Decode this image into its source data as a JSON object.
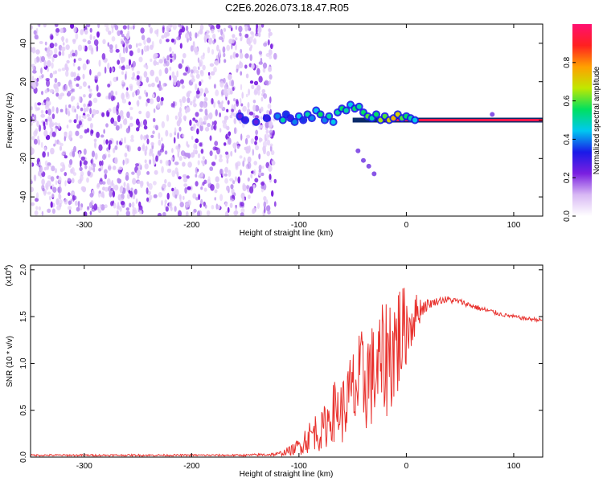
{
  "figure_title": "C2E6.2026.073.18.47.R05",
  "colors": {
    "axis": "#000000",
    "snr_line": "#e8312d",
    "spectrogram_noise": "#7a1fe0",
    "background": "#ffffff"
  },
  "chart_data": [
    {
      "type": "heatmap",
      "title": "C2E6.2026.073.18.47.R05",
      "xlabel": "Height of straight line (km)",
      "ylabel": "Frequency (Hz)",
      "xlim": [
        -350,
        127
      ],
      "ylim": [
        -50,
        50
      ],
      "x_ticks": [
        -300,
        -200,
        -100,
        0,
        100
      ],
      "x_tick_labels": [
        "-300",
        "-200",
        "-100",
        "0",
        "100"
      ],
      "y_ticks": [
        -40,
        -20,
        0,
        20,
        40
      ],
      "y_tick_labels": [
        "-40",
        "-20",
        "0",
        "20",
        "40"
      ],
      "colorbar": {
        "label": "Normalized spectral amplitude",
        "range": [
          0.0,
          1.0
        ],
        "ticks": [
          0.0,
          0.2,
          0.4,
          0.6,
          0.8
        ],
        "tick_labels": [
          "0.0",
          "0.2",
          "0.4",
          "0.6",
          "0.8"
        ],
        "colormap": [
          "#ffffff",
          "#d8b8f4",
          "#7a1fe0",
          "#1a1ae8",
          "#00c8f0",
          "#00e060",
          "#c0e800",
          "#ffa000",
          "#ff2020",
          "#ff1070"
        ]
      },
      "features": {
        "noise_region_x": [
          -350,
          -122
        ],
        "carrier_line_x": [
          -50,
          127
        ],
        "carrier_freq": 0,
        "carrier_max_amplitude": 0.95,
        "spur_points": [
          [
            -45,
            -16
          ],
          [
            -40,
            -21
          ],
          [
            -35,
            -24
          ],
          [
            -30,
            -28
          ],
          [
            80,
            3
          ]
        ],
        "scatter_points": [
          [
            -120,
            2,
            0.4
          ],
          [
            -115,
            0,
            0.5
          ],
          [
            -112,
            3,
            0.35
          ],
          [
            -108,
            1,
            0.3
          ],
          [
            -104,
            -1,
            0.4
          ],
          [
            -100,
            2,
            0.45
          ],
          [
            -96,
            0,
            0.35
          ],
          [
            -92,
            3,
            0.5
          ],
          [
            -88,
            1,
            0.4
          ],
          [
            -84,
            5,
            0.45
          ],
          [
            -80,
            3,
            0.55
          ],
          [
            -76,
            0,
            0.4
          ],
          [
            -72,
            2,
            0.5
          ],
          [
            -68,
            -1,
            0.45
          ],
          [
            -64,
            4,
            0.5
          ],
          [
            -60,
            6,
            0.55
          ],
          [
            -56,
            5,
            0.5
          ],
          [
            -52,
            8,
            0.45
          ],
          [
            -48,
            6,
            0.55
          ],
          [
            -44,
            7,
            0.5
          ],
          [
            -40,
            4,
            0.55
          ],
          [
            -36,
            2,
            0.6
          ],
          [
            -32,
            1,
            0.5
          ],
          [
            -28,
            3,
            0.55
          ],
          [
            -24,
            0,
            0.65
          ],
          [
            -20,
            2,
            0.6
          ],
          [
            -16,
            0,
            0.7
          ],
          [
            -12,
            1,
            0.75
          ],
          [
            -8,
            3,
            0.7
          ],
          [
            -4,
            1,
            0.6
          ],
          [
            0,
            2,
            0.55
          ],
          [
            4,
            1,
            0.5
          ],
          [
            8,
            0,
            0.45
          ],
          [
            -130,
            1,
            0.3
          ],
          [
            -140,
            -1,
            0.25
          ],
          [
            -150,
            0,
            0.3
          ],
          [
            -155,
            2,
            0.25
          ]
        ]
      }
    },
    {
      "type": "line",
      "title": "",
      "xlabel": "Height of straight line (km)",
      "ylabel": "SNR (10 * v/v)",
      "y_scale_label": "(x10",
      "y_scale_exponent": "4",
      "xlim": [
        -350,
        127
      ],
      "ylim": [
        0,
        2.05
      ],
      "x_ticks": [
        -300,
        -200,
        -100,
        0,
        100
      ],
      "x_tick_labels": [
        "-300",
        "-200",
        "-100",
        "0",
        "100"
      ],
      "y_ticks": [
        0.0,
        0.5,
        1.0,
        1.5,
        2.0
      ],
      "y_tick_labels": [
        "0.0",
        "0.5",
        "1.0",
        "1.5",
        "2.0"
      ],
      "series": [
        {
          "name": "SNR",
          "color": "#e8312d",
          "x": [
            -350,
            -300,
            -250,
            -200,
            -150,
            -120,
            -105,
            -100,
            -95,
            -90,
            -85,
            -80,
            -75,
            -70,
            -65,
            -60,
            -55,
            -50,
            -45,
            -40,
            -35,
            -30,
            -25,
            -20,
            -15,
            -10,
            -5,
            0,
            5,
            10,
            15,
            20,
            25,
            30,
            35,
            40,
            50,
            60,
            70,
            80,
            90,
            100,
            110,
            120,
            127
          ],
          "values": [
            0.02,
            0.02,
            0.02,
            0.02,
            0.02,
            0.03,
            0.08,
            0.12,
            0.18,
            0.22,
            0.28,
            0.25,
            0.35,
            0.45,
            0.52,
            0.48,
            0.6,
            0.68,
            0.75,
            0.8,
            0.9,
            0.85,
            0.95,
            1.05,
            1.15,
            1.2,
            1.3,
            1.38,
            1.45,
            1.55,
            1.6,
            1.63,
            1.65,
            1.67,
            1.68,
            1.68,
            1.66,
            1.62,
            1.58,
            1.55,
            1.52,
            1.5,
            1.48,
            1.47,
            1.46
          ],
          "noise_amplitude": [
            0.01,
            0.01,
            0.01,
            0.01,
            0.01,
            0.02,
            0.06,
            0.1,
            0.15,
            0.18,
            0.2,
            0.2,
            0.25,
            0.3,
            0.35,
            0.35,
            0.4,
            0.5,
            0.55,
            0.6,
            0.6,
            0.55,
            0.6,
            0.65,
            0.7,
            0.7,
            0.6,
            0.4,
            0.3,
            0.2,
            0.1,
            0.06,
            0.04,
            0.04,
            0.04,
            0.04,
            0.03,
            0.03,
            0.03,
            0.03,
            0.02,
            0.02,
            0.02,
            0.02,
            0.02
          ]
        }
      ]
    }
  ]
}
